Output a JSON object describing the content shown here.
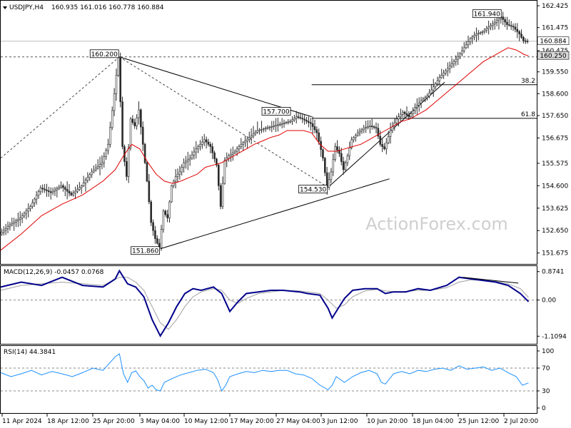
{
  "header": {
    "symbol": "USDJPY,H4",
    "ohlc": "160.935 161.016 160.778 160.884"
  },
  "watermark": "ActionForex.com",
  "colors": {
    "candle": "#2a2a2a",
    "ema": "#e00000",
    "macd_line": "#00008b",
    "macd_signal": "#a0a0a0",
    "rsi": "#1e90ff",
    "trendline": "#000000",
    "grid_dashed": "#555555"
  },
  "chart_data": [
    {
      "type": "line",
      "panel": "price",
      "title": "USDJPY,H4",
      "y_ticks": [
        "162.425",
        "161.475",
        "160.475",
        "159.550",
        "158.600",
        "157.650",
        "156.675",
        "155.575",
        "154.600",
        "153.625",
        "152.650",
        "151.675"
      ],
      "ylim": [
        151.2,
        162.55
      ],
      "x_ticks": [
        "11 Apr 2024",
        "18 Apr 12:00",
        "25 Apr 20:00",
        "3 May 04:00",
        "10 May 12:00",
        "17 May 20:00",
        "27 May 04:00",
        "3 Jun 12:00",
        "10 Jun 20:00",
        "18 Jun 04:00",
        "25 Jun 12:00",
        "2 Jul 20:00"
      ],
      "price_path": [
        [
          0,
          152.5
        ],
        [
          5,
          152.9
        ],
        [
          10,
          153.2
        ],
        [
          15,
          153.7
        ],
        [
          20,
          154.5
        ],
        [
          25,
          154.3
        ],
        [
          30,
          154.6
        ],
        [
          35,
          154.2
        ],
        [
          40,
          154.6
        ],
        [
          45,
          155.2
        ],
        [
          50,
          155.6
        ],
        [
          53,
          156.4
        ],
        [
          56,
          158.6
        ],
        [
          58,
          160.2
        ],
        [
          60,
          156.3
        ],
        [
          62,
          155.0
        ],
        [
          64,
          157.5
        ],
        [
          66,
          157.2
        ],
        [
          68,
          157.9
        ],
        [
          70,
          156.4
        ],
        [
          72,
          154.8
        ],
        [
          74,
          153.0
        ],
        [
          76,
          152.3
        ],
        [
          78,
          151.9
        ],
        [
          80,
          153.5
        ],
        [
          82,
          153.2
        ],
        [
          84,
          154.6
        ],
        [
          86,
          155.0
        ],
        [
          88,
          155.2
        ],
        [
          90,
          155.6
        ],
        [
          93,
          155.8
        ],
        [
          96,
          156.2
        ],
        [
          100,
          156.6
        ],
        [
          103,
          156.3
        ],
        [
          106,
          155.5
        ],
        [
          108,
          153.7
        ],
        [
          110,
          155.7
        ],
        [
          112,
          155.9
        ],
        [
          115,
          156.1
        ],
        [
          118,
          156.4
        ],
        [
          122,
          156.7
        ],
        [
          126,
          157.0
        ],
        [
          130,
          157.1
        ],
        [
          134,
          157.2
        ],
        [
          138,
          157.3
        ],
        [
          142,
          157.4
        ],
        [
          145,
          157.6
        ],
        [
          148,
          157.5
        ],
        [
          152,
          157.3
        ],
        [
          155,
          156.9
        ],
        [
          158,
          155.8
        ],
        [
          160,
          154.53
        ],
        [
          162,
          155.2
        ],
        [
          164,
          156.3
        ],
        [
          166,
          156.0
        ],
        [
          168,
          155.3
        ],
        [
          170,
          155.9
        ],
        [
          172,
          156.6
        ],
        [
          175,
          156.9
        ],
        [
          178,
          157.1
        ],
        [
          181,
          157.2
        ],
        [
          184,
          157.1
        ],
        [
          186,
          156.4
        ],
        [
          188,
          156.2
        ],
        [
          191,
          157.0
        ],
        [
          194,
          157.5
        ],
        [
          197,
          157.8
        ],
        [
          200,
          157.6
        ],
        [
          203,
          158.0
        ],
        [
          206,
          158.3
        ],
        [
          209,
          158.5
        ],
        [
          212,
          158.9
        ],
        [
          215,
          159.3
        ],
        [
          218,
          159.6
        ],
        [
          221,
          159.9
        ],
        [
          224,
          160.2
        ],
        [
          227,
          160.6
        ],
        [
          230,
          161.0
        ],
        [
          233,
          161.2
        ],
        [
          236,
          161.3
        ],
        [
          239,
          161.5
        ],
        [
          242,
          161.7
        ],
        [
          245,
          161.94
        ],
        [
          248,
          161.6
        ],
        [
          251,
          161.5
        ],
        [
          254,
          161.2
        ],
        [
          256,
          160.9
        ],
        [
          258,
          160.88
        ]
      ],
      "ema_path": [
        [
          0,
          151.8
        ],
        [
          10,
          152.5
        ],
        [
          20,
          153.3
        ],
        [
          30,
          153.8
        ],
        [
          40,
          154.2
        ],
        [
          50,
          154.8
        ],
        [
          56,
          155.3
        ],
        [
          60,
          155.9
        ],
        [
          64,
          156.4
        ],
        [
          68,
          156.2
        ],
        [
          72,
          155.6
        ],
        [
          76,
          155.1
        ],
        [
          80,
          154.8
        ],
        [
          84,
          154.7
        ],
        [
          88,
          154.8
        ],
        [
          92,
          154.95
        ],
        [
          96,
          155.1
        ],
        [
          100,
          155.4
        ],
        [
          104,
          155.5
        ],
        [
          108,
          155.6
        ],
        [
          112,
          155.8
        ],
        [
          116,
          156.0
        ],
        [
          120,
          156.2
        ],
        [
          124,
          156.4
        ],
        [
          128,
          156.55
        ],
        [
          132,
          156.7
        ],
        [
          136,
          156.8
        ],
        [
          140,
          157.0
        ],
        [
          144,
          157.0
        ],
        [
          148,
          157.0
        ],
        [
          152,
          156.9
        ],
        [
          156,
          156.4
        ],
        [
          160,
          156.1
        ],
        [
          164,
          156.1
        ],
        [
          168,
          156.2
        ],
        [
          172,
          156.3
        ],
        [
          176,
          156.4
        ],
        [
          180,
          156.6
        ],
        [
          184,
          156.8
        ],
        [
          188,
          157.0
        ],
        [
          192,
          157.2
        ],
        [
          196,
          157.4
        ],
        [
          200,
          157.5
        ],
        [
          204,
          157.7
        ],
        [
          208,
          157.9
        ],
        [
          212,
          158.2
        ],
        [
          216,
          158.5
        ],
        [
          220,
          158.8
        ],
        [
          224,
          159.1
        ],
        [
          228,
          159.4
        ],
        [
          232,
          159.7
        ],
        [
          236,
          160.0
        ],
        [
          240,
          160.2
        ],
        [
          244,
          160.4
        ],
        [
          248,
          160.6
        ],
        [
          252,
          160.5
        ],
        [
          256,
          160.3
        ],
        [
          258,
          160.25
        ]
      ],
      "annotations": [
        "160.200",
        "157.700",
        "154.530",
        "151.860",
        "161.940"
      ],
      "fib_levels": [
        {
          "label": "38.2",
          "price": 158.99
        },
        {
          "label": "61.8",
          "price": 157.53
        }
      ],
      "price_tags": [
        {
          "label": "160.884",
          "price": 160.884
        },
        {
          "label": "160.250",
          "price": 160.25
        }
      ],
      "hline_dashed": 160.2,
      "trendlines": [
        {
          "from": [
            58,
            160.2
          ],
          "to": [
            152,
            157.6
          ]
        },
        {
          "from": [
            78,
            151.86
          ],
          "to": [
            190,
            154.9
          ]
        },
        {
          "from": [
            160,
            154.53
          ],
          "to": [
            217,
            159.1
          ]
        }
      ],
      "dashed_lines": [
        {
          "from": [
            0,
            155.8
          ],
          "to": [
            58,
            160.2
          ]
        },
        {
          "from": [
            58,
            160.2
          ],
          "to": [
            160,
            154.53
          ]
        }
      ]
    },
    {
      "type": "line",
      "panel": "macd",
      "title": "MACD(12,26,9) -0.0457 0.0768",
      "y_ticks": [
        "0.8741",
        "0.00",
        "-1.1094"
      ],
      "ylim": [
        -1.3,
        1.0
      ],
      "macd_path": [
        [
          0,
          0.4
        ],
        [
          10,
          0.55
        ],
        [
          20,
          0.45
        ],
        [
          30,
          0.7
        ],
        [
          40,
          0.45
        ],
        [
          50,
          0.4
        ],
        [
          56,
          0.65
        ],
        [
          58,
          0.9
        ],
        [
          62,
          0.5
        ],
        [
          66,
          0.4
        ],
        [
          70,
          0.1
        ],
        [
          74,
          -0.6
        ],
        [
          78,
          -1.1
        ],
        [
          82,
          -0.7
        ],
        [
          86,
          -0.2
        ],
        [
          90,
          0.2
        ],
        [
          94,
          0.35
        ],
        [
          98,
          0.3
        ],
        [
          104,
          0.4
        ],
        [
          108,
          0.2
        ],
        [
          112,
          -0.35
        ],
        [
          116,
          -0.05
        ],
        [
          120,
          0.2
        ],
        [
          126,
          0.25
        ],
        [
          132,
          0.3
        ],
        [
          138,
          0.3
        ],
        [
          146,
          0.25
        ],
        [
          150,
          0.2
        ],
        [
          156,
          0.15
        ],
        [
          160,
          -0.25
        ],
        [
          162,
          -0.55
        ],
        [
          164,
          -0.35
        ],
        [
          168,
          0.05
        ],
        [
          172,
          0.3
        ],
        [
          178,
          0.35
        ],
        [
          184,
          0.35
        ],
        [
          188,
          0.2
        ],
        [
          192,
          0.25
        ],
        [
          198,
          0.25
        ],
        [
          204,
          0.35
        ],
        [
          210,
          0.3
        ],
        [
          218,
          0.45
        ],
        [
          224,
          0.7
        ],
        [
          230,
          0.65
        ],
        [
          236,
          0.6
        ],
        [
          242,
          0.55
        ],
        [
          248,
          0.45
        ],
        [
          254,
          0.2
        ],
        [
          258,
          -0.05
        ]
      ],
      "signal_path": [
        [
          0,
          0.3
        ],
        [
          10,
          0.45
        ],
        [
          20,
          0.5
        ],
        [
          30,
          0.55
        ],
        [
          40,
          0.5
        ],
        [
          50,
          0.45
        ],
        [
          58,
          0.7
        ],
        [
          62,
          0.7
        ],
        [
          66,
          0.55
        ],
        [
          70,
          0.3
        ],
        [
          74,
          -0.2
        ],
        [
          78,
          -0.7
        ],
        [
          82,
          -0.9
        ],
        [
          86,
          -0.6
        ],
        [
          90,
          -0.2
        ],
        [
          94,
          0.1
        ],
        [
          98,
          0.25
        ],
        [
          104,
          0.35
        ],
        [
          108,
          0.3
        ],
        [
          112,
          0.0
        ],
        [
          116,
          -0.1
        ],
        [
          120,
          0.05
        ],
        [
          126,
          0.2
        ],
        [
          132,
          0.25
        ],
        [
          138,
          0.3
        ],
        [
          146,
          0.28
        ],
        [
          150,
          0.25
        ],
        [
          156,
          0.2
        ],
        [
          160,
          0.0
        ],
        [
          164,
          -0.25
        ],
        [
          168,
          -0.15
        ],
        [
          172,
          0.1
        ],
        [
          178,
          0.28
        ],
        [
          184,
          0.33
        ],
        [
          188,
          0.28
        ],
        [
          192,
          0.26
        ],
        [
          198,
          0.26
        ],
        [
          204,
          0.3
        ],
        [
          210,
          0.3
        ],
        [
          218,
          0.38
        ],
        [
          224,
          0.55
        ],
        [
          230,
          0.62
        ],
        [
          236,
          0.6
        ],
        [
          242,
          0.57
        ],
        [
          248,
          0.5
        ],
        [
          254,
          0.35
        ],
        [
          258,
          0.08
        ]
      ]
    },
    {
      "type": "line",
      "panel": "rsi",
      "title": "RSI(14) 44.3841",
      "y_ticks": [
        "100",
        "70",
        "30",
        "0"
      ],
      "ylim": [
        0,
        100
      ],
      "levels": [
        70,
        30
      ],
      "rsi_path": [
        [
          0,
          62
        ],
        [
          5,
          55
        ],
        [
          10,
          60
        ],
        [
          15,
          66
        ],
        [
          20,
          58
        ],
        [
          25,
          64
        ],
        [
          30,
          60
        ],
        [
          35,
          55
        ],
        [
          40,
          62
        ],
        [
          45,
          70
        ],
        [
          50,
          66
        ],
        [
          54,
          82
        ],
        [
          56,
          90
        ],
        [
          58,
          95
        ],
        [
          60,
          60
        ],
        [
          62,
          45
        ],
        [
          64,
          62
        ],
        [
          66,
          65
        ],
        [
          68,
          55
        ],
        [
          70,
          48
        ],
        [
          72,
          35
        ],
        [
          74,
          40
        ],
        [
          76,
          32
        ],
        [
          78,
          30
        ],
        [
          80,
          45
        ],
        [
          84,
          52
        ],
        [
          88,
          58
        ],
        [
          92,
          62
        ],
        [
          96,
          66
        ],
        [
          100,
          68
        ],
        [
          104,
          62
        ],
        [
          106,
          50
        ],
        [
          108,
          30
        ],
        [
          110,
          40
        ],
        [
          112,
          55
        ],
        [
          116,
          60
        ],
        [
          120,
          64
        ],
        [
          124,
          62
        ],
        [
          128,
          66
        ],
        [
          132,
          64
        ],
        [
          136,
          66
        ],
        [
          140,
          66
        ],
        [
          144,
          60
        ],
        [
          148,
          58
        ],
        [
          152,
          52
        ],
        [
          156,
          40
        ],
        [
          160,
          32
        ],
        [
          162,
          40
        ],
        [
          164,
          55
        ],
        [
          166,
          50
        ],
        [
          168,
          45
        ],
        [
          172,
          55
        ],
        [
          176,
          62
        ],
        [
          180,
          66
        ],
        [
          184,
          60
        ],
        [
          186,
          45
        ],
        [
          188,
          42
        ],
        [
          192,
          60
        ],
        [
          196,
          64
        ],
        [
          200,
          60
        ],
        [
          204,
          66
        ],
        [
          208,
          64
        ],
        [
          212,
          68
        ],
        [
          216,
          70
        ],
        [
          220,
          66
        ],
        [
          224,
          74
        ],
        [
          228,
          68
        ],
        [
          232,
          70
        ],
        [
          236,
          72
        ],
        [
          240,
          66
        ],
        [
          244,
          70
        ],
        [
          248,
          62
        ],
        [
          252,
          55
        ],
        [
          255,
          40
        ],
        [
          258,
          44
        ]
      ]
    }
  ]
}
